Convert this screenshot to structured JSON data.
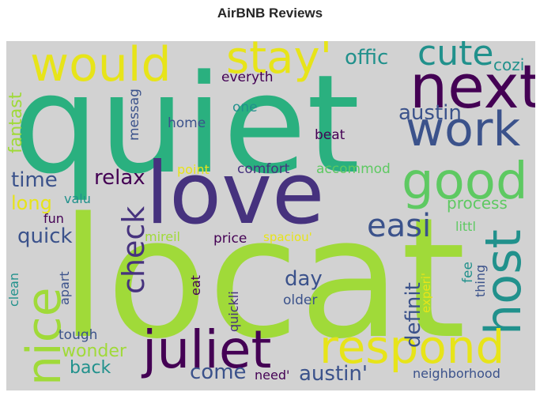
{
  "title": "AirBNB Reviews",
  "colors": {
    "background": "#d2d2d2",
    "dark_purple": "#440154",
    "indigo": "#3b528b",
    "teal": "#21918c",
    "green_teal": "#2ab07f",
    "green": "#5ec962",
    "lime": "#a0da39",
    "yellow": "#e7e419"
  },
  "words": {
    "locat": "locat",
    "quiet": "quiet",
    "love": "love",
    "would": "would",
    "stay": "stay'",
    "next": "next",
    "work": "work",
    "cute": "cute",
    "offic": "offic",
    "cozi": "cozi",
    "good": "good",
    "host": "host",
    "nice": "nice",
    "juliet": "juliet",
    "respond": "respond",
    "easi": "easi",
    "check": "check",
    "austin_1": "austin",
    "austin_2": "austin'",
    "relax": "relax",
    "time": "time",
    "long": "long",
    "quick": "quick",
    "fantast": "fantast",
    "messag": "messag",
    "everyth": "everyth",
    "one": "one",
    "home": "home",
    "beat": "beat",
    "point": "point",
    "comfort": "comfort",
    "accommod": "accommod",
    "process": "process",
    "valu": "valu",
    "fun": "fun",
    "littl": "littl",
    "mireil": "mireil",
    "price": "price",
    "spaciou": "spaciou'",
    "day": "day",
    "definit": "definit",
    "fee": "fee",
    "thing": "thing",
    "experi": "experi'",
    "older": "older",
    "clean": "clean",
    "apart": "apart",
    "eat": "eat",
    "quickli": "quickli",
    "tough": "tough",
    "wonder": "wonder",
    "back": "back",
    "come": "come",
    "need": "need'",
    "neighborhood": "neighborhood"
  }
}
